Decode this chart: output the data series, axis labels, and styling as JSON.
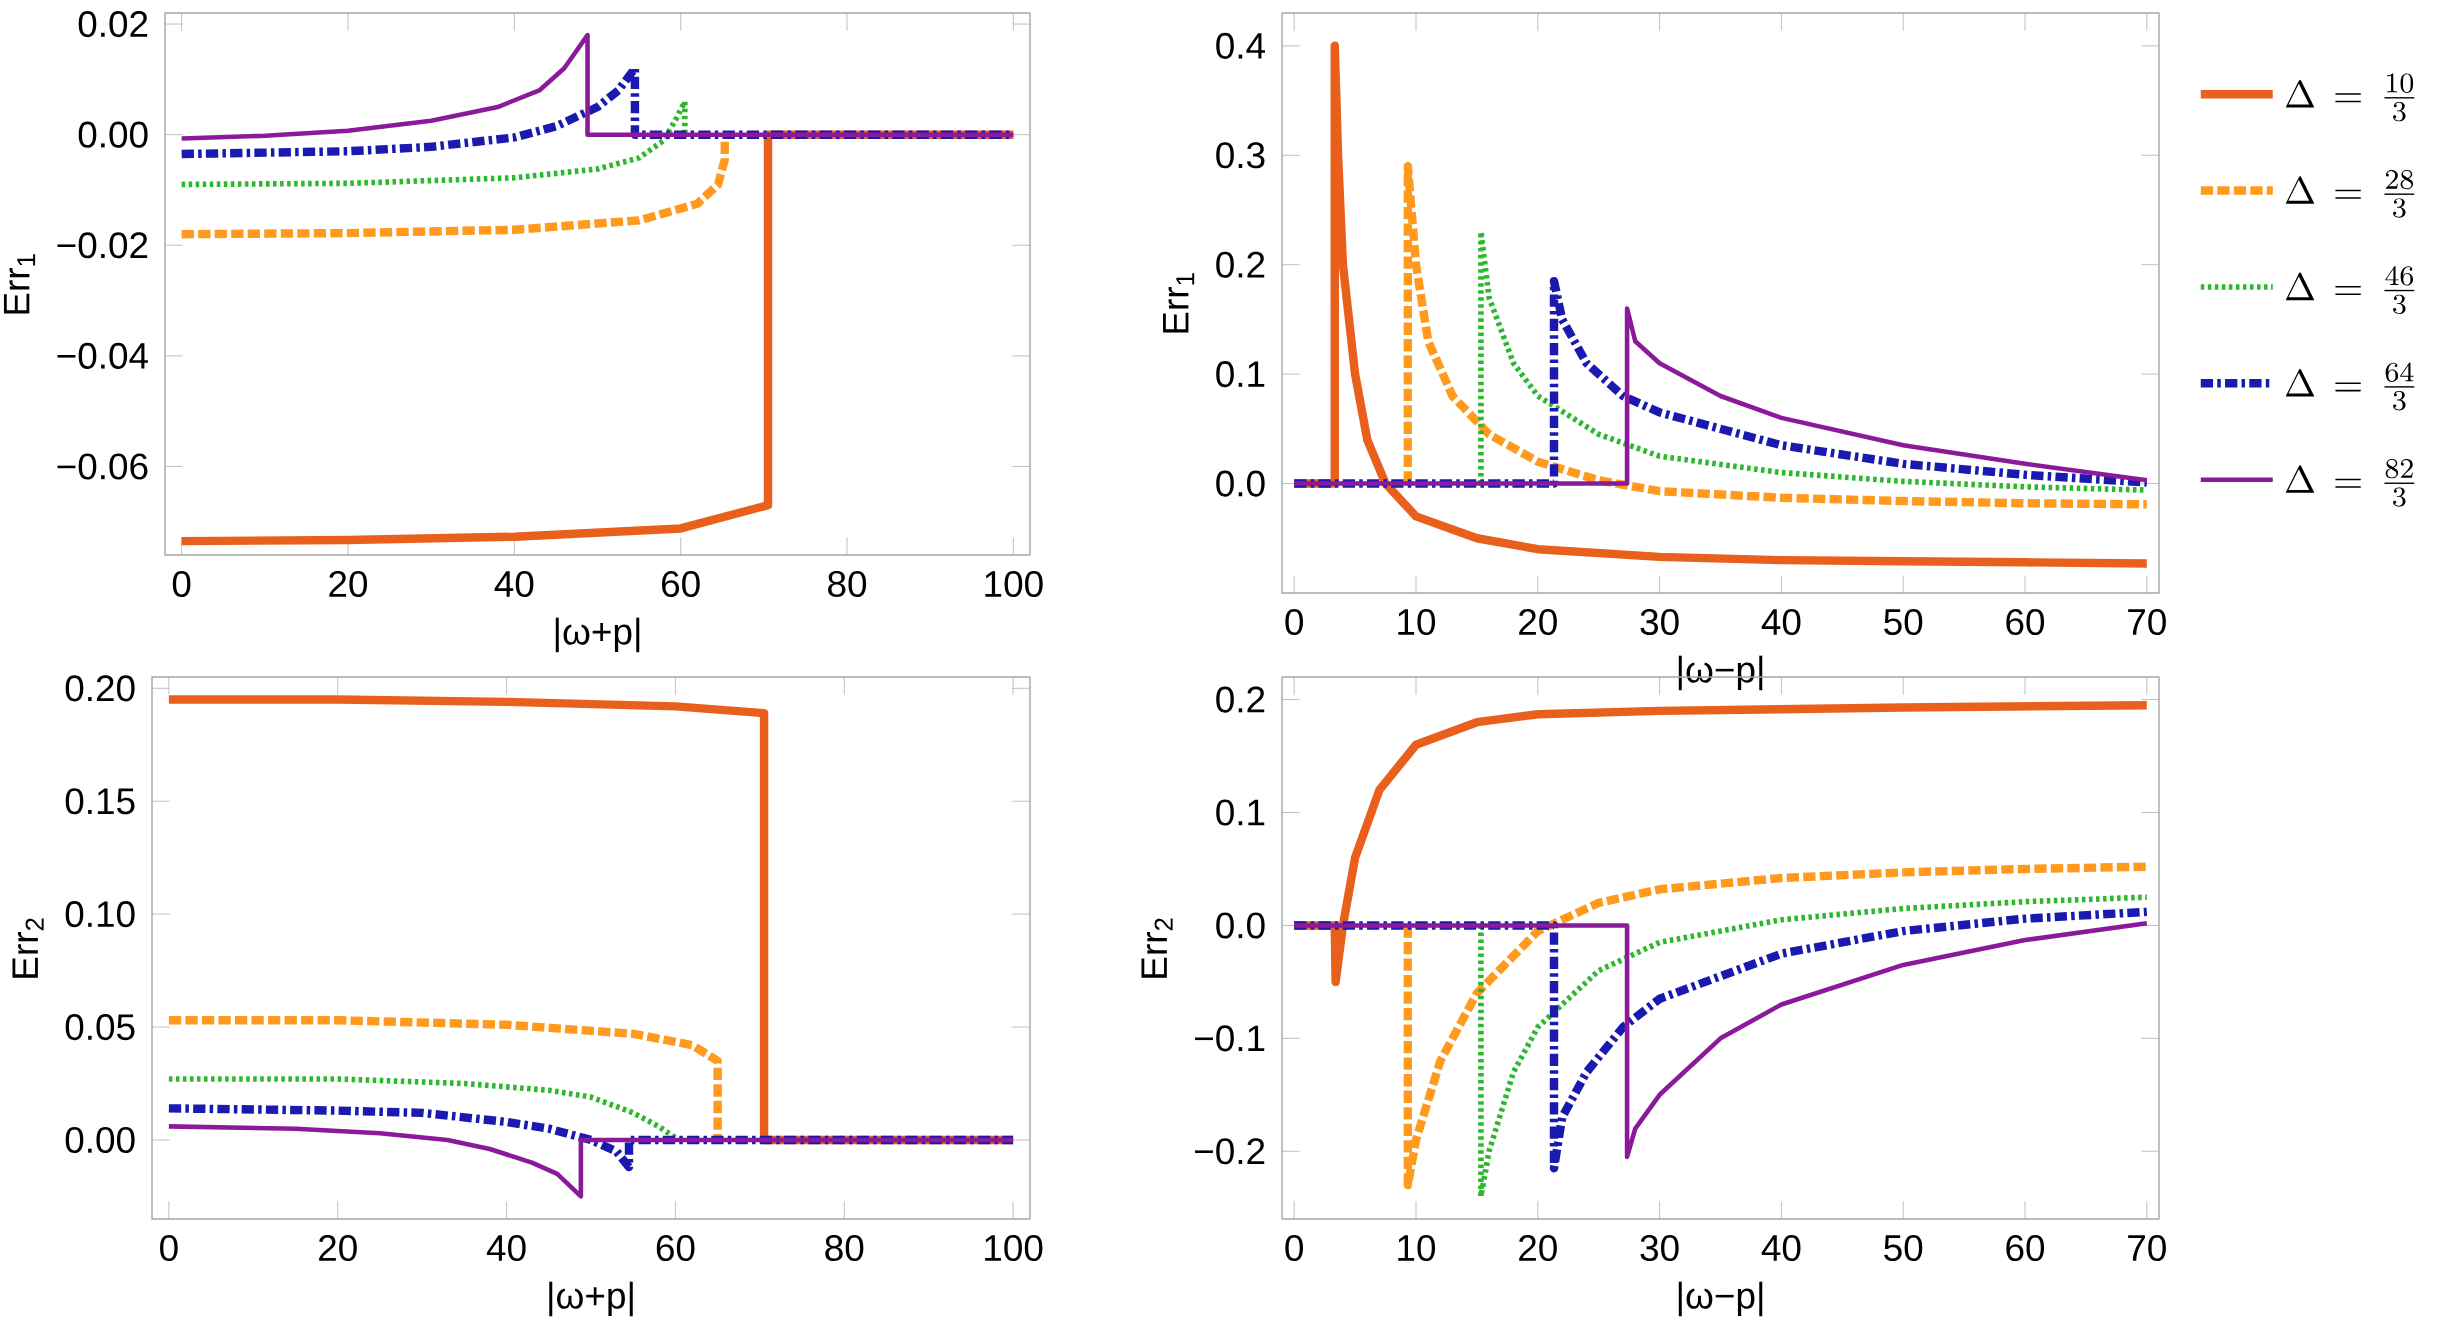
{
  "chart_data": [
    {
      "type": "line",
      "xlabel": "|ω+p|",
      "ylabel": "Err$_{1}$",
      "xlim": [
        -2,
        102
      ],
      "xticks": [
        0,
        20,
        40,
        60,
        80,
        100
      ],
      "ylim": [
        -0.076,
        0.022
      ],
      "yticks": [
        {
          "value": -0.06,
          "label": "−0.06"
        },
        {
          "value": -0.04,
          "label": "−0.04"
        },
        {
          "value": -0.02,
          "label": "−0.02"
        },
        {
          "value": 0,
          "label": "0.00"
        },
        {
          "value": 0.02,
          "label": "0.02"
        }
      ],
      "series": [
        {
          "color": "#e8601c",
          "line_style": "solid",
          "x": [
            0,
            20,
            40,
            60,
            70.5,
            70.5,
            100
          ],
          "values": [
            -0.0735,
            -0.0733,
            -0.0727,
            -0.0712,
            -0.067,
            0,
            0
          ]
        },
        {
          "color": "#ff9a1e",
          "line_style": "dashed",
          "x": [
            0,
            20,
            40,
            55,
            62,
            64.5,
            65.3,
            65.3
          ],
          "values": [
            -0.018,
            -0.0178,
            -0.0172,
            -0.0155,
            -0.0125,
            -0.009,
            -0.0045,
            0
          ]
        },
        {
          "color": "#2cb82c",
          "line_style": "dotted",
          "x": [
            0,
            20,
            40,
            50,
            55,
            58,
            59.5,
            60.5,
            60.5
          ],
          "values": [
            -0.009,
            -0.0088,
            -0.0078,
            -0.0062,
            -0.0042,
            -0.001,
            0.003,
            0.006,
            0
          ]
        },
        {
          "color": "#1a1ab0",
          "line_style": "dashdot",
          "x": [
            0,
            20,
            30,
            40,
            45,
            50,
            52.5,
            54.5,
            54.5,
            100
          ],
          "values": [
            -0.0035,
            -0.003,
            -0.0022,
            -0.0005,
            0.0015,
            0.005,
            0.008,
            0.012,
            0,
            0
          ]
        },
        {
          "color": "#8b1a9b",
          "line_style": "solid",
          "x": [
            0,
            10,
            20,
            30,
            38,
            43,
            46,
            48.8,
            48.8,
            100
          ],
          "values": [
            -0.0007,
            -0.0002,
            0.0007,
            0.0025,
            0.005,
            0.008,
            0.012,
            0.018,
            0,
            0
          ]
        }
      ]
    },
    {
      "type": "line",
      "xlabel": "|ω−p|",
      "ylabel": "Err$_{1}$",
      "legend": "right",
      "xlim": [
        -1,
        71
      ],
      "xticks": [
        0,
        10,
        20,
        30,
        40,
        50,
        60,
        70
      ],
      "ylim": [
        -0.1,
        0.43
      ],
      "yticks": [
        {
          "value": 0,
          "label": "0.0"
        },
        {
          "value": 0.1,
          "label": "0.1"
        },
        {
          "value": 0.2,
          "label": "0.2"
        },
        {
          "value": 0.3,
          "label": "0.3"
        },
        {
          "value": 0.4,
          "label": "0.4"
        }
      ],
      "series": [
        {
          "name": "\\Delta\\, = \\,\\frac{10}{3}",
          "color": "#e8601c",
          "line_style": "solid",
          "x": [
            0,
            3.33,
            3.33,
            3.6,
            4,
            5,
            6,
            7.5,
            10,
            15,
            20,
            30,
            40,
            50,
            60,
            70
          ],
          "values": [
            0,
            0,
            0.4,
            0.3,
            0.2,
            0.1,
            0.04,
            0,
            -0.03,
            -0.05,
            -0.06,
            -0.067,
            -0.07,
            -0.071,
            -0.072,
            -0.073
          ]
        },
        {
          "name": "\\Delta\\, = \\,\\frac{28}{3}",
          "color": "#ff9a1e",
          "line_style": "dashed",
          "x": [
            9.33,
            9.33,
            10,
            11,
            13,
            16,
            20,
            25,
            30,
            40,
            50,
            60,
            70
          ],
          "values": [
            0,
            0.29,
            0.2,
            0.13,
            0.08,
            0.045,
            0.02,
            0.003,
            -0.007,
            -0.013,
            -0.016,
            -0.018,
            -0.019
          ]
        },
        {
          "name": "\\Delta\\, = \\,\\frac{46}{3}",
          "color": "#2cb82c",
          "line_style": "dotted",
          "x": [
            15.33,
            15.33,
            16,
            18,
            20,
            25,
            30,
            40,
            50,
            60,
            70
          ],
          "values": [
            0,
            0.23,
            0.17,
            0.11,
            0.08,
            0.045,
            0.025,
            0.01,
            0.002,
            -0.003,
            -0.006
          ]
        },
        {
          "name": "\\Delta\\, = \\,\\frac{64}{3}",
          "color": "#1a1ab0",
          "line_style": "dashdot",
          "x": [
            0,
            21.33,
            21.33,
            22,
            24,
            27,
            30,
            40,
            50,
            60,
            70
          ],
          "values": [
            0,
            0,
            0.185,
            0.15,
            0.11,
            0.08,
            0.065,
            0.035,
            0.018,
            0.008,
            0.001
          ]
        },
        {
          "name": "\\Delta\\, = \\,\\frac{82}{3}",
          "color": "#8b1a9b",
          "line_style": "solid",
          "x": [
            0,
            27.33,
            27.33,
            28,
            30,
            35,
            40,
            50,
            60,
            70
          ],
          "values": [
            0,
            0,
            0.16,
            0.13,
            0.11,
            0.08,
            0.06,
            0.035,
            0.018,
            0.003
          ]
        }
      ]
    },
    {
      "type": "line",
      "xlabel": "|ω+p|",
      "ylabel": "Err$_{2}$",
      "xlim": [
        -2,
        102
      ],
      "xticks": [
        0,
        20,
        40,
        60,
        80,
        100
      ],
      "ylim": [
        -0.035,
        0.205
      ],
      "yticks": [
        {
          "value": 0,
          "label": "0.00"
        },
        {
          "value": 0.05,
          "label": "0.05"
        },
        {
          "value": 0.1,
          "label": "0.10"
        },
        {
          "value": 0.15,
          "label": "0.15"
        },
        {
          "value": 0.2,
          "label": "0.20"
        }
      ],
      "series": [
        {
          "color": "#e8601c",
          "line_style": "solid",
          "x": [
            0,
            20,
            40,
            60,
            70.5,
            70.5,
            100
          ],
          "values": [
            0.195,
            0.195,
            0.194,
            0.192,
            0.189,
            0,
            0
          ]
        },
        {
          "color": "#ff9a1e",
          "line_style": "dashed",
          "x": [
            0,
            20,
            40,
            55,
            62,
            65,
            65
          ],
          "values": [
            0.053,
            0.053,
            0.051,
            0.047,
            0.042,
            0.035,
            0
          ]
        },
        {
          "color": "#2cb82c",
          "line_style": "dotted",
          "x": [
            0,
            20,
            35,
            45,
            50,
            55,
            58,
            60,
            60
          ],
          "values": [
            0.027,
            0.027,
            0.025,
            0.022,
            0.019,
            0.012,
            0.006,
            0.001,
            0
          ]
        },
        {
          "color": "#1a1ab0",
          "line_style": "dashdot",
          "x": [
            0,
            20,
            30,
            40,
            45,
            50,
            53,
            54.5,
            54.5,
            100
          ],
          "values": [
            0.014,
            0.013,
            0.012,
            0.008,
            0.005,
            0,
            -0.005,
            -0.012,
            0,
            0
          ]
        },
        {
          "color": "#8b1a9b",
          "line_style": "solid",
          "x": [
            0,
            15,
            25,
            33,
            38,
            43,
            46,
            48.8,
            48.8,
            100
          ],
          "values": [
            0.006,
            0.005,
            0.003,
            0,
            -0.004,
            -0.01,
            -0.015,
            -0.025,
            0,
            0
          ]
        }
      ]
    },
    {
      "type": "line",
      "xlabel": "|ω−p|",
      "ylabel": "Err$_{2}$",
      "xlim": [
        -1,
        71
      ],
      "xticks": [
        0,
        10,
        20,
        30,
        40,
        50,
        60,
        70
      ],
      "ylim": [
        -0.26,
        0.22
      ],
      "yticks": [
        {
          "value": -0.2,
          "label": "−0.2"
        },
        {
          "value": -0.1,
          "label": "−0.1"
        },
        {
          "value": 0,
          "label": "0.0"
        },
        {
          "value": 0.1,
          "label": "0.1"
        },
        {
          "value": 0.2,
          "label": "0.2"
        }
      ],
      "series": [
        {
          "color": "#e8601c",
          "line_style": "solid",
          "x": [
            0,
            3.33,
            3.4,
            4,
            5,
            7,
            10,
            15,
            20,
            30,
            50,
            70
          ],
          "values": [
            0,
            0,
            -0.05,
            0,
            0.06,
            0.12,
            0.16,
            0.18,
            0.187,
            0.19,
            0.193,
            0.195
          ]
        },
        {
          "color": "#ff9a1e",
          "line_style": "dashed",
          "x": [
            9.33,
            9.33,
            10,
            12,
            15,
            20,
            25,
            30,
            40,
            50,
            60,
            70
          ],
          "values": [
            0,
            -0.23,
            -0.19,
            -0.12,
            -0.06,
            -0.005,
            0.02,
            0.032,
            0.042,
            0.047,
            0.05,
            0.052
          ]
        },
        {
          "color": "#2cb82c",
          "line_style": "dotted",
          "x": [
            15.33,
            15.33,
            16,
            18,
            20,
            25,
            30,
            40,
            50,
            60,
            70
          ],
          "values": [
            0,
            -0.24,
            -0.2,
            -0.13,
            -0.09,
            -0.04,
            -0.015,
            0.005,
            0.015,
            0.021,
            0.025
          ]
        },
        {
          "color": "#1a1ab0",
          "line_style": "dashdot",
          "x": [
            0,
            21.33,
            21.33,
            22,
            24,
            27,
            30,
            40,
            50,
            60,
            70
          ],
          "values": [
            0,
            0,
            -0.215,
            -0.17,
            -0.13,
            -0.09,
            -0.065,
            -0.025,
            -0.005,
            0.006,
            0.012
          ]
        },
        {
          "color": "#8b1a9b",
          "line_style": "solid",
          "x": [
            0,
            27.33,
            27.33,
            28,
            30,
            35,
            40,
            50,
            60,
            70
          ],
          "values": [
            0,
            0,
            -0.205,
            -0.18,
            -0.15,
            -0.1,
            -0.07,
            -0.035,
            -0.013,
            0.002
          ]
        }
      ]
    }
  ]
}
